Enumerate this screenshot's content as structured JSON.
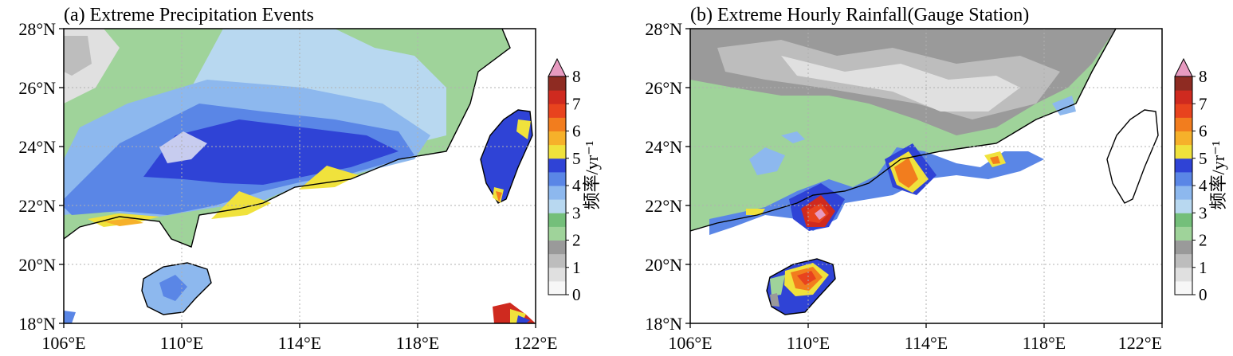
{
  "panels": [
    {
      "title": "(a) Extreme Precipitation Events",
      "x_ticks": [
        "106°E",
        "110°E",
        "114°E",
        "118°E",
        "122°E"
      ],
      "y_ticks": [
        "28°N",
        "26°N",
        "24°N",
        "22°N",
        "20°N",
        "18°N"
      ],
      "colorbar_label": "频率/yr⁻¹"
    },
    {
      "title": "(b) Extreme Hourly Rainfall(Gauge Station)",
      "x_ticks": [
        "106°E",
        "110°E",
        "114°E",
        "118°E",
        "122°E"
      ],
      "y_ticks": [
        "28°N",
        "26°N",
        "24°N",
        "22°N",
        "20°N",
        "18°N"
      ],
      "colorbar_label": "频率/yr⁻¹"
    }
  ],
  "map_extent": {
    "lon": [
      106,
      122
    ],
    "lat": [
      18,
      28
    ]
  },
  "colorbar": {
    "ticks": [
      "0",
      "1",
      "2",
      "3",
      "4",
      "5",
      "6",
      "7",
      "8"
    ],
    "levels": [
      0,
      0.5,
      1,
      1.5,
      2,
      2.5,
      3,
      3.5,
      4,
      4.5,
      5,
      5.5,
      6,
      6.5,
      7,
      7.5,
      8
    ],
    "colors": [
      "#f7f7f7",
      "#e0e0e0",
      "#bdbdbd",
      "#9a9a9a",
      "#9fd39a",
      "#74bf7a",
      "#b8d8f0",
      "#8db8ee",
      "#5a86e6",
      "#2f43d6",
      "#f0e23c",
      "#f6b12a",
      "#f27d1e",
      "#e8431e",
      "#cf2a1f",
      "#8e2b22"
    ],
    "extend_color": "#e79ac0"
  }
}
